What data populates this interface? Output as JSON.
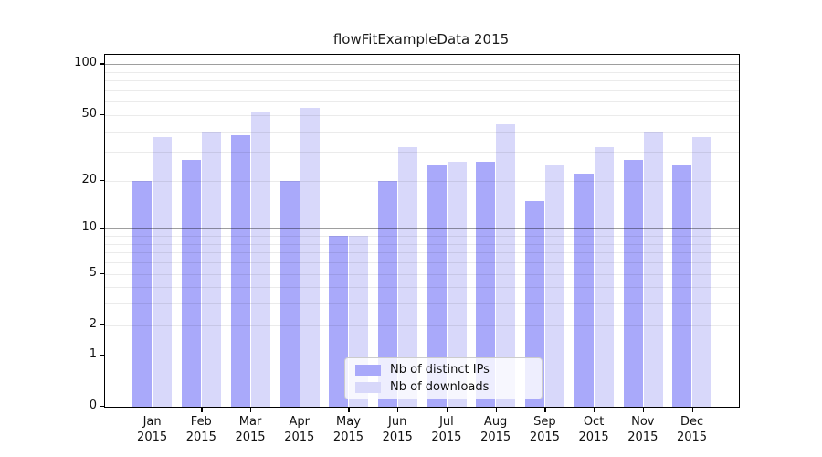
{
  "title": "flowFitExampleData 2015",
  "legend": {
    "items": [
      {
        "label": "Nb of distinct IPs",
        "color_key": "bar_dark"
      },
      {
        "label": "Nb of downloads",
        "color_key": "bar_light"
      }
    ]
  },
  "colors": {
    "bar_dark": "#a9a9fa",
    "bar_light": "#d8d8fa",
    "grid_minor": "rgba(0,0,0,0.08)",
    "grid_major": "rgba(0,0,0,0.38)",
    "legend_border": "#cccccc",
    "axis": "#000000",
    "text": "#111111"
  },
  "chart_data": {
    "type": "bar",
    "title": "flowFitExampleData 2015",
    "categories": [
      "Jan",
      "Feb",
      "Mar",
      "Apr",
      "May",
      "Jun",
      "Jul",
      "Aug",
      "Sep",
      "Oct",
      "Nov",
      "Dec"
    ],
    "year_label": "2015",
    "series": [
      {
        "name": "Nb of distinct IPs",
        "values": [
          20,
          27,
          38,
          20,
          9,
          20,
          25,
          26,
          15,
          22,
          27,
          25
        ]
      },
      {
        "name": "Nb of downloads",
        "values": [
          37,
          40,
          52,
          55,
          9,
          32,
          26,
          44,
          25,
          32,
          40,
          37
        ]
      }
    ],
    "xlabel": "",
    "ylabel": "",
    "yscale": "log1p",
    "ylim": [
      0,
      115
    ],
    "ytick_labels": [
      0,
      1,
      2,
      5,
      10,
      20,
      50,
      100
    ],
    "grid_minor_values": [
      2,
      3,
      4,
      5,
      6,
      7,
      8,
      9,
      20,
      30,
      40,
      50,
      60,
      70,
      80,
      90
    ],
    "grid_major_values": [
      1,
      10,
      100
    ],
    "grid": true,
    "legend_position": "lower-center"
  }
}
